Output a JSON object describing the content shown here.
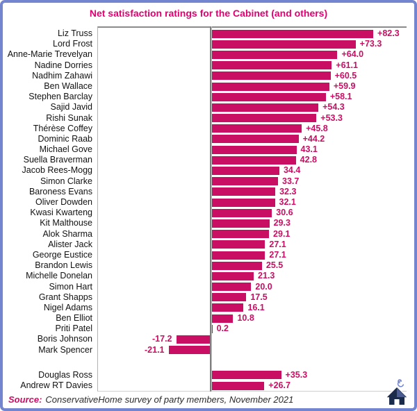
{
  "page": {
    "border_color": "#7385CE",
    "background": "#FFFFFF"
  },
  "source": {
    "label": "Source:",
    "text": "ConservativeHome survey of party members, November 2021"
  },
  "logo": {
    "name": "conservativehome-house-logo"
  },
  "chart_data": {
    "type": "bar",
    "orientation": "horizontal",
    "title": "Net satisfaction ratings for the Cabinet (and others)",
    "title_color": "#E00072",
    "bar_color": "#C80F63",
    "value_label_color": "#C80F63",
    "baseline": 0,
    "xlim": [
      -58.5,
      99.3
    ],
    "axis_ticks_shown": false,
    "grid": false,
    "value_labels_shown": true,
    "groups": [
      {
        "name": "cabinet",
        "rows": [
          {
            "label": "Liz Truss",
            "value": 82.3,
            "display": "+82.3"
          },
          {
            "label": "Lord Frost",
            "value": 73.3,
            "display": "+73.3"
          },
          {
            "label": "Anne-Marie Trevelyan",
            "value": 64.0,
            "display": "+64.0"
          },
          {
            "label": "Nadine Dorries",
            "value": 61.1,
            "display": "+61.1"
          },
          {
            "label": "Nadhim Zahawi",
            "value": 60.5,
            "display": "+60.5"
          },
          {
            "label": "Ben Wallace",
            "value": 59.9,
            "display": "+59.9"
          },
          {
            "label": "Stephen Barclay",
            "value": 58.1,
            "display": "+58.1"
          },
          {
            "label": "Sajid Javid",
            "value": 54.3,
            "display": "+54.3"
          },
          {
            "label": "Rishi Sunak",
            "value": 53.3,
            "display": "+53.3"
          },
          {
            "label": "Thérèse Coffey",
            "value": 45.8,
            "display": "+45.8"
          },
          {
            "label": "Dominic Raab",
            "value": 44.2,
            "display": "+44.2"
          },
          {
            "label": "Michael Gove",
            "value": 43.1,
            "display": "43.1"
          },
          {
            "label": "Suella Braverman",
            "value": 42.8,
            "display": "42.8"
          },
          {
            "label": "Jacob Rees-Mogg",
            "value": 34.4,
            "display": "34.4"
          },
          {
            "label": "Simon Clarke",
            "value": 33.7,
            "display": "33.7"
          },
          {
            "label": "Baroness Evans",
            "value": 32.3,
            "display": "32.3"
          },
          {
            "label": "Oliver Dowden",
            "value": 32.1,
            "display": "32.1"
          },
          {
            "label": "Kwasi Kwarteng",
            "value": 30.6,
            "display": "30.6"
          },
          {
            "label": "Kit Malthouse",
            "value": 29.3,
            "display": "29.3"
          },
          {
            "label": "Alok Sharma",
            "value": 29.1,
            "display": "29.1"
          },
          {
            "label": "Alister Jack",
            "value": 27.1,
            "display": "27.1"
          },
          {
            "label": "George Eustice",
            "value": 27.1,
            "display": "27.1"
          },
          {
            "label": "Brandon Lewis",
            "value": 25.5,
            "display": "25.5"
          },
          {
            "label": "Michelle Donelan",
            "value": 21.3,
            "display": "21.3"
          },
          {
            "label": "Simon Hart",
            "value": 20.0,
            "display": "20.0"
          },
          {
            "label": "Grant Shapps",
            "value": 17.5,
            "display": "17.5"
          },
          {
            "label": "Nigel Adams",
            "value": 16.1,
            "display": "16.1"
          },
          {
            "label": "Ben Elliot",
            "value": 10.8,
            "display": "10.8"
          },
          {
            "label": "Priti Patel",
            "value": 0.2,
            "display": "0.2"
          },
          {
            "label": "Boris Johnson",
            "value": -17.2,
            "display": "-17.2"
          },
          {
            "label": "Mark Spencer",
            "value": -21.1,
            "display": "-21.1"
          }
        ]
      },
      {
        "name": "others",
        "rows": [
          {
            "label": "Douglas Ross",
            "value": 35.3,
            "display": "+35.3"
          },
          {
            "label": "Andrew RT Davies",
            "value": 26.7,
            "display": "+26.7"
          }
        ]
      }
    ]
  }
}
